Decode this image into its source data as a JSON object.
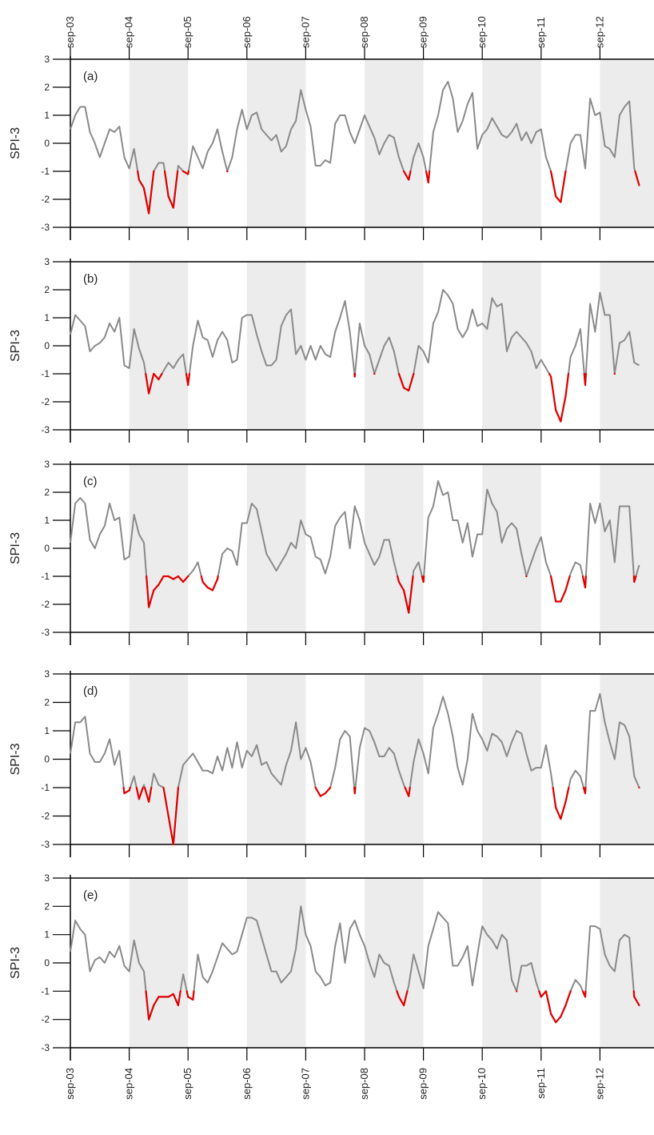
{
  "figure": {
    "top_axis_labels": [
      "sep-03",
      "sep-04",
      "sep-05",
      "sep-06",
      "sep-07",
      "sep-08",
      "sep-09",
      "sep-10",
      "sep-11",
      "sep-12"
    ],
    "bottom_axis_labels": [
      "sep-03",
      "sep-04",
      "sep-05",
      "sep-06",
      "sep-07",
      "sep-08",
      "sep-09",
      "sep-10",
      "sep-11",
      "sep-12"
    ],
    "colors": {
      "line": "#8a8a8a",
      "drought": "#e00000",
      "shade": "#ececec",
      "axis": "#000000"
    }
  },
  "chart_data": [
    {
      "type": "line",
      "panel_label": "(a)",
      "ylabel": "SPI-3",
      "ylim": [
        -3,
        3
      ],
      "yticks": [
        3,
        2,
        1,
        0,
        -1,
        -2,
        -3
      ],
      "grid": false,
      "drought_threshold": -1,
      "series": [
        {
          "x_start": "2003-09",
          "step": "month",
          "values": [
            0.5,
            1.0,
            1.3,
            1.3,
            0.4,
            0.0,
            -0.5,
            0.0,
            0.5,
            0.4,
            0.6,
            -0.5,
            -0.9,
            -0.2,
            -1.3,
            -1.6,
            -2.5,
            -1.0,
            -0.7,
            -0.7,
            -1.9,
            -2.3,
            -0.8,
            -1.0,
            -1.1,
            -0.1,
            -0.5,
            -0.9,
            -0.3,
            0.0,
            0.5,
            -0.3,
            -1.0,
            -0.5,
            0.5,
            1.2,
            0.5,
            1.0,
            1.1,
            0.5,
            0.3,
            0.1,
            0.3,
            -0.3,
            -0.1,
            0.5,
            0.8,
            1.9,
            1.2,
            0.6,
            -0.8,
            -0.8,
            -0.6,
            -0.7,
            0.7,
            1.0,
            1.0,
            0.4,
            0.0,
            0.5,
            1.0,
            0.6,
            0.2,
            -0.4,
            0.0,
            0.3,
            0.2,
            -0.5,
            -1.0,
            -1.3,
            -0.5,
            0.0,
            -0.5,
            -1.4,
            0.4,
            1.0,
            1.9,
            2.2,
            1.6,
            0.4,
            0.8,
            1.4,
            1.8,
            -0.2,
            0.3,
            0.5,
            0.9,
            0.6,
            0.3,
            0.2,
            0.4,
            0.7,
            0.1,
            0.4,
            0.0,
            0.4,
            0.5,
            -0.5,
            -1.0,
            -1.9,
            -2.1,
            -1.0,
            0.0,
            0.3,
            0.3,
            -0.9,
            1.6,
            1.0,
            1.1,
            -0.1,
            -0.2,
            -0.5,
            1.0,
            1.3,
            1.5,
            -0.9,
            -1.5
          ]
        }
      ]
    },
    {
      "type": "line",
      "panel_label": "(b)",
      "ylabel": "SPI-3",
      "ylim": [
        -3,
        3
      ],
      "yticks": [
        3,
        2,
        1,
        0,
        -1,
        -2,
        -3
      ],
      "grid": false,
      "drought_threshold": -1,
      "series": [
        {
          "x_start": "2003-09",
          "step": "month",
          "values": [
            0.4,
            1.1,
            0.9,
            0.7,
            -0.2,
            0.0,
            0.1,
            0.3,
            0.8,
            0.5,
            1.0,
            -0.7,
            -0.8,
            0.6,
            -0.1,
            -0.6,
            -1.7,
            -1.0,
            -1.2,
            -0.9,
            -0.6,
            -0.8,
            -0.5,
            -0.3,
            -1.4,
            0.0,
            0.9,
            0.3,
            0.2,
            -0.4,
            0.2,
            0.5,
            0.2,
            -0.6,
            -0.5,
            1.0,
            1.1,
            1.1,
            0.4,
            -0.2,
            -0.7,
            -0.7,
            -0.5,
            0.7,
            1.1,
            1.3,
            -0.3,
            0.0,
            -0.5,
            0.0,
            -0.5,
            0.0,
            -0.3,
            -0.4,
            0.5,
            1.0,
            1.6,
            0.5,
            -1.1,
            0.8,
            0.0,
            -0.3,
            -1.0,
            -0.5,
            0.0,
            0.3,
            -0.2,
            -1.0,
            -1.5,
            -1.6,
            -1.0,
            0.0,
            -0.2,
            -0.6,
            0.8,
            1.2,
            2.0,
            1.8,
            1.5,
            0.6,
            0.3,
            0.6,
            1.3,
            0.7,
            0.8,
            0.6,
            1.7,
            1.4,
            1.5,
            -0.2,
            0.3,
            0.5,
            0.3,
            0.1,
            -0.2,
            -0.8,
            -0.5,
            -0.8,
            -1.1,
            -2.3,
            -2.7,
            -1.8,
            -0.4,
            0.0,
            0.6,
            -1.4,
            1.5,
            0.5,
            1.9,
            1.1,
            1.1,
            -1.0,
            0.1,
            0.2,
            0.5,
            -0.6,
            -0.7
          ]
        }
      ]
    },
    {
      "type": "line",
      "panel_label": "(c)",
      "ylabel": "SPI-3",
      "ylim": [
        -3,
        3
      ],
      "yticks": [
        3,
        2,
        1,
        0,
        -1,
        -2,
        -3
      ],
      "grid": false,
      "drought_threshold": -1,
      "series": [
        {
          "x_start": "2003-09",
          "step": "month",
          "values": [
            0.2,
            1.6,
            1.8,
            1.6,
            0.3,
            0.0,
            0.5,
            0.8,
            1.6,
            1.0,
            1.1,
            -0.4,
            -0.3,
            1.2,
            0.5,
            0.2,
            -2.1,
            -1.5,
            -1.3,
            -1.0,
            -1.0,
            -1.1,
            -1.0,
            -1.2,
            -1.0,
            -0.8,
            -0.5,
            -1.2,
            -1.4,
            -1.5,
            -1.1,
            -0.2,
            0.0,
            -0.1,
            -0.6,
            0.9,
            0.9,
            1.6,
            1.4,
            0.6,
            -0.2,
            -0.5,
            -0.8,
            -0.5,
            -0.2,
            0.2,
            0.0,
            1.0,
            0.5,
            0.4,
            -0.3,
            -0.4,
            -0.9,
            -0.3,
            0.8,
            1.1,
            1.3,
            0.0,
            1.5,
            1.0,
            0.2,
            -0.2,
            -0.6,
            -0.3,
            0.3,
            0.3,
            -0.5,
            -1.2,
            -1.5,
            -2.3,
            -0.8,
            -0.5,
            -1.2,
            1.1,
            1.5,
            2.4,
            1.9,
            2.0,
            1.0,
            1.0,
            0.2,
            0.9,
            -0.3,
            0.5,
            0.5,
            2.1,
            1.6,
            1.3,
            0.2,
            0.7,
            0.9,
            0.7,
            -0.2,
            -1.0,
            -0.5,
            0.0,
            0.4,
            -0.5,
            -1.0,
            -1.9,
            -1.9,
            -1.5,
            -0.9,
            -0.5,
            -0.6,
            -1.4,
            1.6,
            0.9,
            1.6,
            0.6,
            1.0,
            -0.5,
            1.5,
            1.5,
            1.5,
            -1.2,
            -0.6
          ]
        }
      ]
    },
    {
      "type": "line",
      "panel_label": "(d)",
      "ylabel": "SPI-3",
      "ylim": [
        -3,
        3
      ],
      "yticks": [
        3,
        2,
        1,
        0,
        -1,
        -2,
        -3
      ],
      "grid": false,
      "drought_threshold": -1,
      "series": [
        {
          "x_start": "2003-09",
          "step": "month",
          "values": [
            0.2,
            1.3,
            1.3,
            1.5,
            0.2,
            -0.1,
            -0.1,
            0.2,
            0.7,
            -0.2,
            0.3,
            -1.2,
            -1.1,
            -0.6,
            -1.4,
            -0.9,
            -1.5,
            -0.5,
            -0.9,
            -1.0,
            -2.0,
            -3.0,
            -1.0,
            -0.2,
            0.0,
            0.2,
            -0.1,
            -0.4,
            -0.4,
            -0.5,
            0.1,
            -0.4,
            0.4,
            -0.3,
            0.6,
            -0.3,
            0.3,
            0.1,
            0.5,
            -0.2,
            -0.1,
            -0.5,
            -0.7,
            -0.9,
            -0.2,
            0.3,
            1.3,
            0.0,
            0.4,
            -0.1,
            -1.0,
            -1.3,
            -1.2,
            -1.0,
            -0.3,
            0.7,
            1.0,
            0.8,
            -1.2,
            0.4,
            1.1,
            1.0,
            0.6,
            0.1,
            0.1,
            0.4,
            0.2,
            -0.4,
            -0.9,
            -1.3,
            -0.1,
            0.7,
            0.2,
            -0.5,
            1.1,
            1.6,
            2.2,
            1.6,
            0.8,
            -0.3,
            -0.9,
            0.0,
            1.6,
            1.0,
            0.7,
            0.3,
            0.9,
            0.8,
            0.6,
            0.1,
            0.6,
            1.0,
            0.9,
            0.2,
            -0.4,
            -0.3,
            -0.3,
            0.5,
            -0.5,
            -1.7,
            -2.1,
            -1.5,
            -0.7,
            -0.4,
            -0.6,
            -1.2,
            1.7,
            1.7,
            2.3,
            1.3,
            0.6,
            0.0,
            1.3,
            1.2,
            0.8,
            -0.6,
            -1.0
          ]
        }
      ]
    },
    {
      "type": "line",
      "panel_label": "(e)",
      "ylabel": "SPI-3",
      "ylim": [
        -3,
        3
      ],
      "yticks": [
        3,
        2,
        1,
        0,
        -1,
        -2,
        -3
      ],
      "grid": false,
      "drought_threshold": -1,
      "series": [
        {
          "x_start": "2003-09",
          "step": "month",
          "values": [
            0.4,
            1.5,
            1.2,
            1.0,
            -0.3,
            0.1,
            0.2,
            0.0,
            0.4,
            0.2,
            0.6,
            -0.1,
            -0.3,
            0.8,
            0.0,
            -0.3,
            -2.0,
            -1.5,
            -1.2,
            -1.2,
            -1.2,
            -1.1,
            -1.5,
            -0.4,
            -1.2,
            -1.3,
            0.3,
            -0.5,
            -0.7,
            -0.3,
            0.2,
            0.7,
            0.5,
            0.3,
            0.4,
            1.0,
            1.6,
            1.6,
            1.5,
            0.9,
            0.3,
            -0.3,
            -0.3,
            -0.7,
            -0.5,
            -0.3,
            0.5,
            2.0,
            1.0,
            0.6,
            -0.3,
            -0.5,
            -0.8,
            -0.7,
            0.6,
            1.4,
            0.0,
            1.2,
            1.5,
            1.0,
            0.6,
            0.0,
            -0.5,
            0.3,
            0.0,
            -0.1,
            -0.7,
            -1.2,
            -1.5,
            -0.8,
            0.3,
            -0.3,
            -0.9,
            0.6,
            1.2,
            1.8,
            1.6,
            1.4,
            -0.1,
            -0.1,
            0.2,
            0.6,
            -0.8,
            0.3,
            1.3,
            1.0,
            0.8,
            0.5,
            1.0,
            0.8,
            -0.6,
            -1.0,
            -0.1,
            -0.1,
            0.0,
            -0.7,
            -1.2,
            -1.0,
            -1.8,
            -2.1,
            -1.9,
            -1.5,
            -1.0,
            -0.6,
            -0.8,
            -1.2,
            1.3,
            1.3,
            1.2,
            0.3,
            -0.1,
            -0.3,
            0.8,
            1.0,
            0.9,
            -1.2,
            -1.5
          ]
        }
      ]
    }
  ]
}
